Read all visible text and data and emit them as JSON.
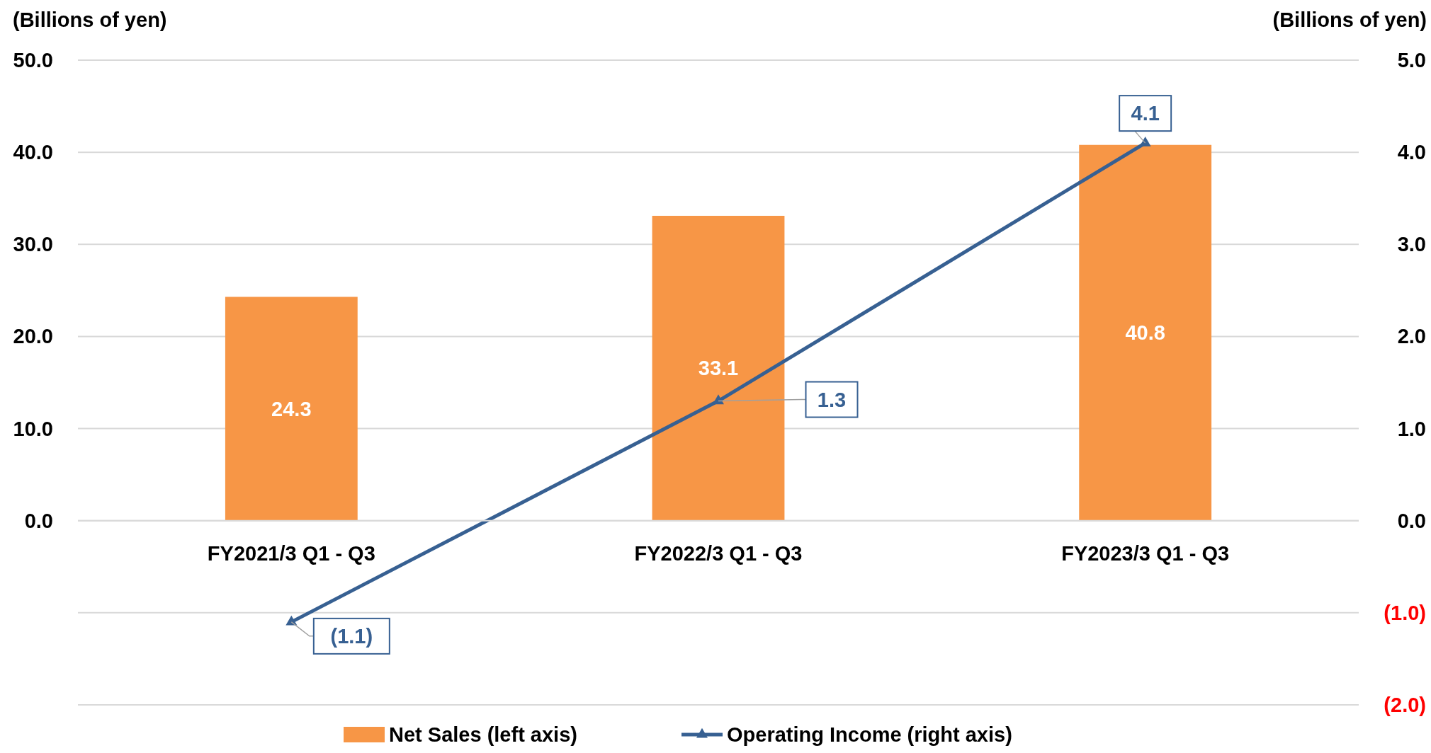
{
  "chart_data": {
    "type": "bar",
    "categories": [
      "FY2021/3 Q1 - Q3",
      "FY2022/3 Q1 - Q3",
      "FY2023/3 Q1 - Q3"
    ],
    "ylabel": "(Billions of yen)",
    "y2label": "(Billions of yen)",
    "series": [
      {
        "name": "Net Sales (left axis)",
        "color": "#f79646",
        "values": [
          24.3,
          33.1,
          40.8
        ],
        "value_labels": [
          "24.3",
          "33.1",
          "40.8"
        ]
      },
      {
        "name": "Operating Income (right axis)",
        "type": "line",
        "axis": "y2",
        "color": "#376092",
        "marker": "triangle",
        "values": [
          -1.1,
          1.3,
          4.1
        ],
        "value_labels": [
          "(1.1)",
          "1.3",
          "4.1"
        ]
      }
    ],
    "ylim": [
      -20,
      50
    ],
    "yticks": [
      {
        "value": -20,
        "label": null
      },
      {
        "value": -10,
        "label": null
      },
      {
        "value": 0,
        "label": "0.0"
      },
      {
        "value": 10,
        "label": "10.0"
      },
      {
        "value": 20,
        "label": "20.0"
      },
      {
        "value": 30,
        "label": "30.0"
      },
      {
        "value": 40,
        "label": "40.0"
      },
      {
        "value": 50,
        "label": "50.0"
      }
    ],
    "y2lim": [
      -2,
      5
    ],
    "y2ticks": [
      {
        "value": -2,
        "label": "(2.0)"
      },
      {
        "value": -1,
        "label": "(1.0)"
      },
      {
        "value": 0,
        "label": "0.0"
      },
      {
        "value": 1,
        "label": "1.0"
      },
      {
        "value": 2,
        "label": "2.0"
      },
      {
        "value": 3,
        "label": "3.0"
      },
      {
        "value": 4,
        "label": "4.0"
      },
      {
        "value": 5,
        "label": "5.0"
      }
    ],
    "grid": "y",
    "legend": "bottom"
  }
}
